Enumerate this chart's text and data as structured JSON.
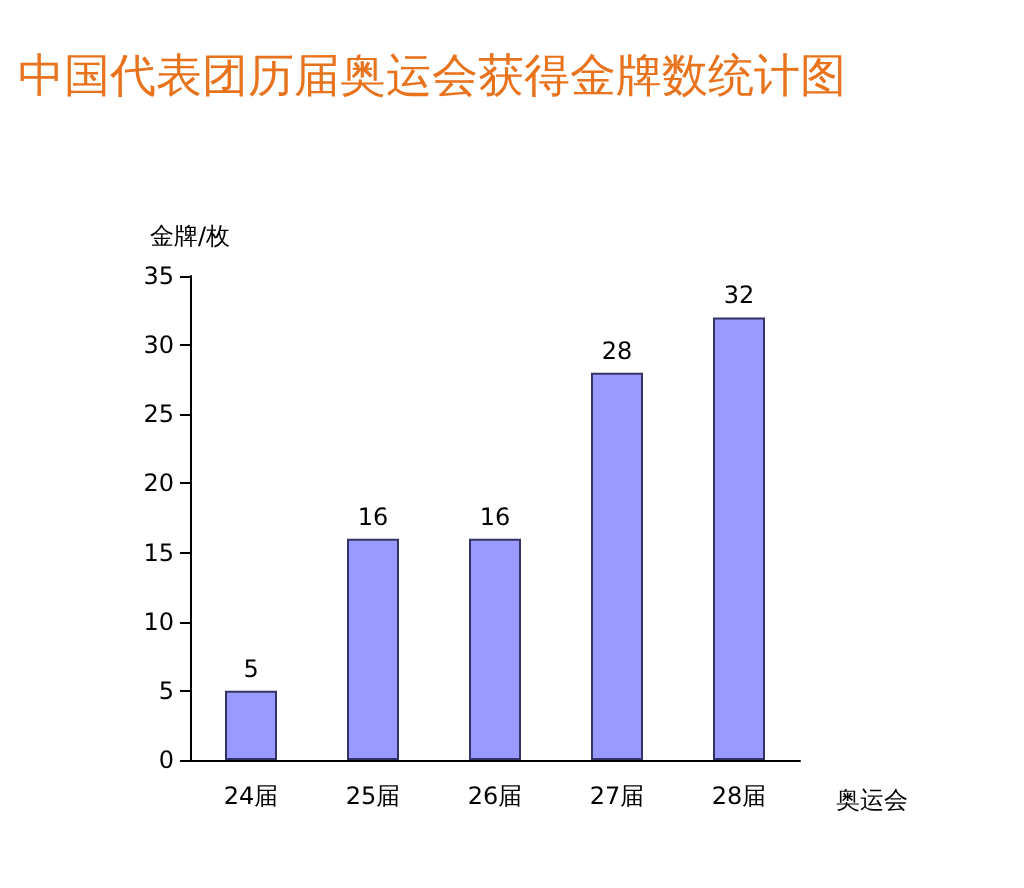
{
  "chart_data": {
    "type": "bar",
    "title": "中国代表团历届奥运会获得金牌数统计图",
    "xlabel": "奥运会",
    "ylabel": "金牌/枚",
    "categories": [
      "24届",
      "25届",
      "26届",
      "27届",
      "28届"
    ],
    "values": [
      5,
      16,
      16,
      28,
      32
    ],
    "color": "#9999ff",
    "ylim": [
      0,
      35
    ],
    "yticks": [
      0,
      5,
      10,
      15,
      20,
      25,
      30,
      35
    ],
    "grid": false,
    "data_labels": true
  }
}
